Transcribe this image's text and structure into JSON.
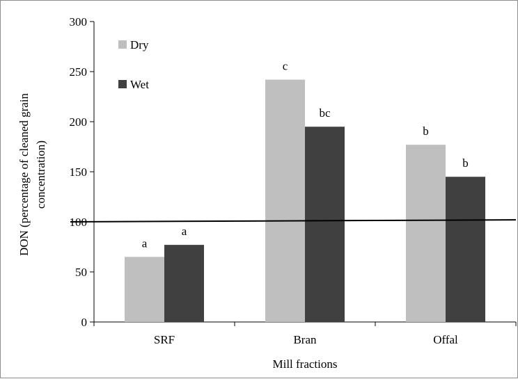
{
  "chart_data": {
    "type": "bar",
    "categories": [
      "SRF",
      "Bran",
      "Offal"
    ],
    "series": [
      {
        "name": "Dry",
        "values": [
          65,
          242,
          177
        ],
        "annotations": [
          "a",
          "c",
          "b"
        ],
        "color": "#bfbfbf"
      },
      {
        "name": "Wet",
        "values": [
          77,
          195,
          145
        ],
        "annotations": [
          "a",
          "bc",
          "b"
        ],
        "color": "#404040"
      }
    ],
    "xlabel": "Mill fractions",
    "ylabel_lines": [
      "DON (percentage of cleaned grain",
      "concentration)"
    ],
    "ylim": [
      0,
      300
    ],
    "yticks": [
      "0",
      "50",
      "100",
      "150",
      "200",
      "250",
      "300"
    ],
    "reference_line": {
      "y_start": 100,
      "y_end": 102
    },
    "legend_position": "top-left",
    "grid": false
  }
}
